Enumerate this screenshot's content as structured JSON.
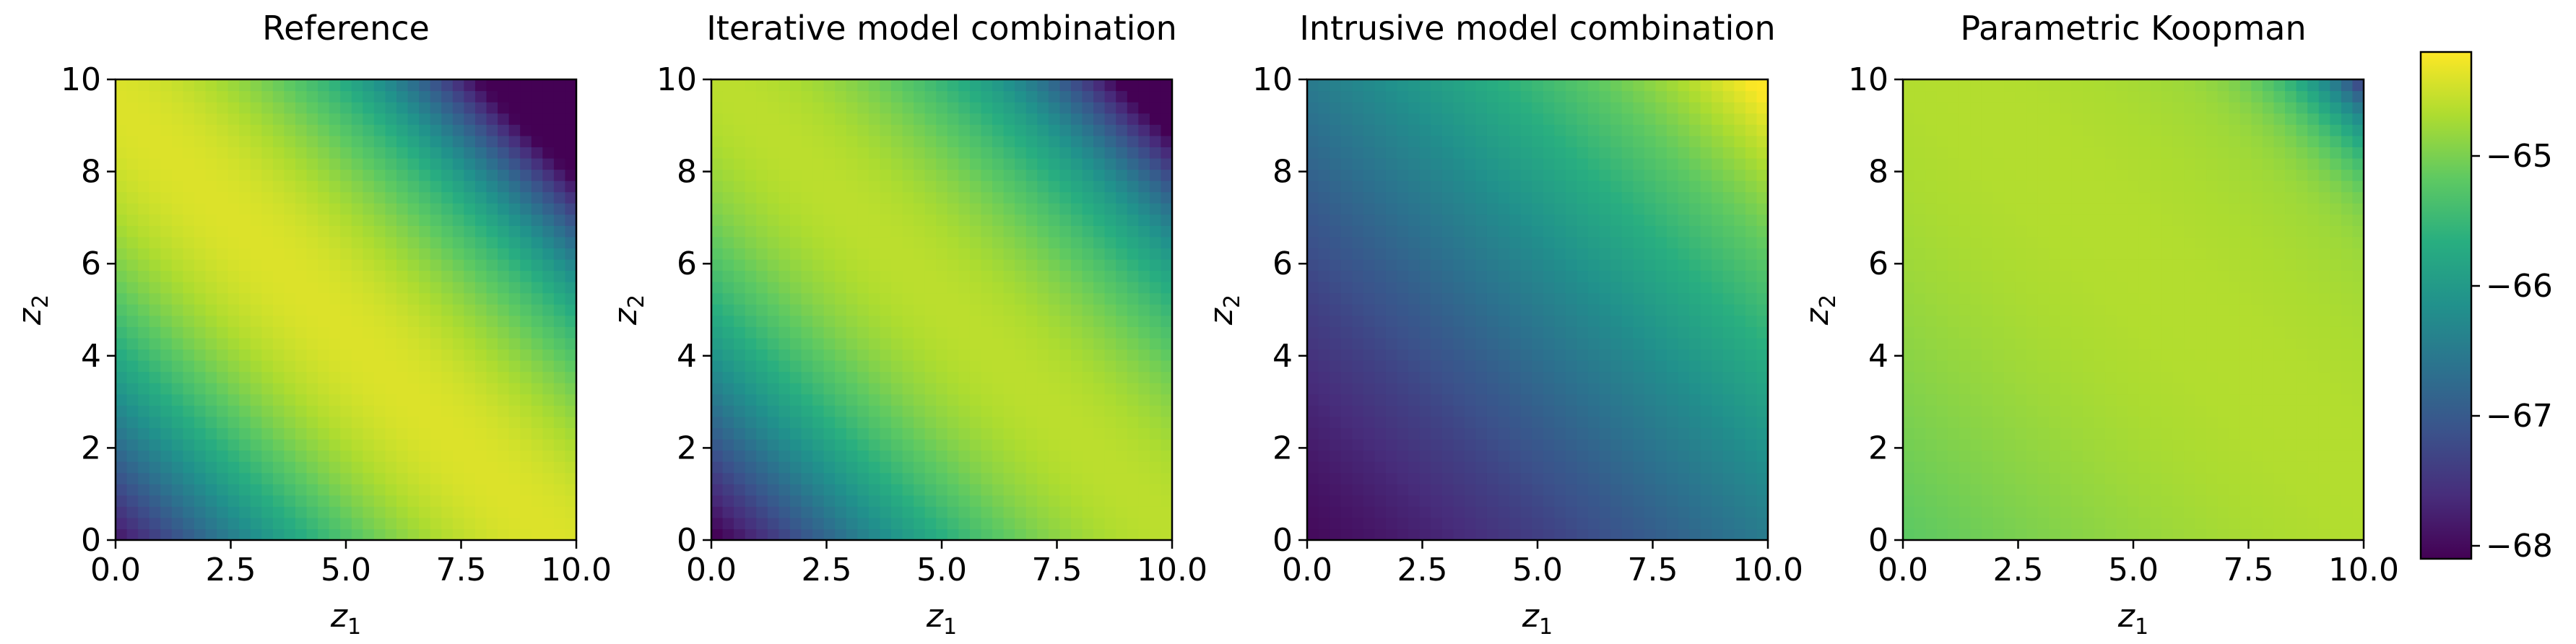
{
  "chart_data": {
    "type": "heatmap",
    "grid_n": 41,
    "x_range": [
      0,
      10
    ],
    "y_range": [
      0,
      10
    ],
    "value_range": [
      -68.1,
      -64.2
    ],
    "colormap": "viridis",
    "panels": [
      {
        "title": "Reference",
        "xlabel": {
          "base": "z",
          "sub": "1"
        },
        "ylabel": {
          "base": "z",
          "sub": "2"
        },
        "model": "reference"
      },
      {
        "title": "Iterative model combination",
        "xlabel": {
          "base": "z",
          "sub": "1"
        },
        "ylabel": {
          "base": "z",
          "sub": "2"
        },
        "model": "iterative"
      },
      {
        "title": "Intrusive model combination",
        "xlabel": {
          "base": "z",
          "sub": "1"
        },
        "ylabel": {
          "base": "z",
          "sub": "2"
        },
        "model": "intrusive"
      },
      {
        "title": "Parametric Koopman",
        "xlabel": {
          "base": "z",
          "sub": "1"
        },
        "ylabel": {
          "base": "z",
          "sub": "2"
        },
        "model": "koopman"
      }
    ],
    "x_ticks": [
      {
        "v": 0,
        "label": "0.0"
      },
      {
        "v": 2.5,
        "label": "2.5"
      },
      {
        "v": 5,
        "label": "5.0"
      },
      {
        "v": 7.5,
        "label": "7.5"
      },
      {
        "v": 10,
        "label": "10.0"
      }
    ],
    "y_ticks": [
      {
        "v": 0,
        "label": "0"
      },
      {
        "v": 2,
        "label": "2"
      },
      {
        "v": 4,
        "label": "4"
      },
      {
        "v": 6,
        "label": "6"
      },
      {
        "v": 8,
        "label": "8"
      },
      {
        "v": 10,
        "label": "10"
      }
    ],
    "colorbar": {
      "ticks": [
        {
          "v": -65,
          "label": "−65"
        },
        {
          "v": -66,
          "label": "−66"
        },
        {
          "v": -67,
          "label": "−67"
        },
        {
          "v": -68,
          "label": "−68"
        }
      ]
    }
  }
}
